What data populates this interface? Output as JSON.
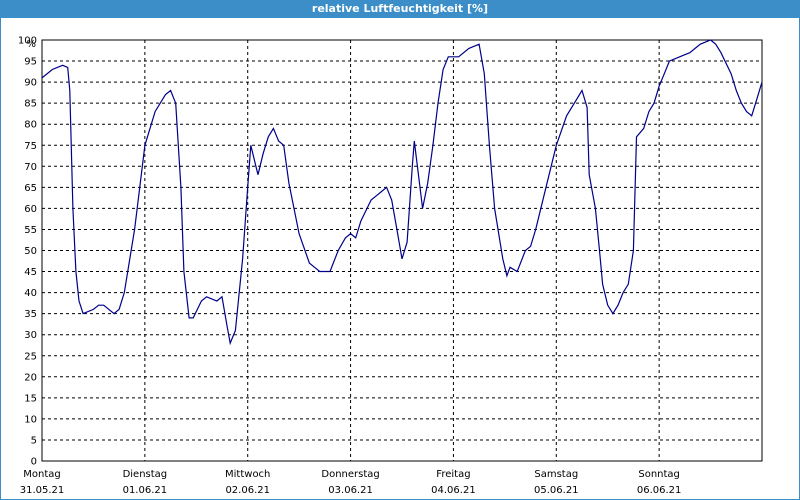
{
  "window": {
    "title": "relative Luftfeuchtigkeit [%]"
  },
  "colors": {
    "title_bg": "#3b8ec7",
    "series": "#00008b",
    "grid": "#000000"
  },
  "chart_data": {
    "type": "line",
    "title": "relative Luftfeuchtigkeit [%]",
    "ylabel": "%",
    "ylim": [
      0,
      100
    ],
    "ytick_step": 5,
    "yticks": [
      "0",
      "5",
      "10",
      "15",
      "20",
      "25",
      "30",
      "35",
      "40",
      "45",
      "50",
      "55",
      "60",
      "65",
      "70",
      "75",
      "80",
      "85",
      "90",
      "95",
      "100"
    ],
    "xlim_days": [
      0,
      7
    ],
    "day_labels": [
      {
        "day": "Montag",
        "date": "31.05.21"
      },
      {
        "day": "Dienstag",
        "date": "01.06.21"
      },
      {
        "day": "Mittwoch",
        "date": "02.06.21"
      },
      {
        "day": "Donnerstag",
        "date": "03.06.21"
      },
      {
        "day": "Freitag",
        "date": "04.06.21"
      },
      {
        "day": "Samstag",
        "date": "05.06.21"
      },
      {
        "day": "Sonntag",
        "date": "06.06.21"
      }
    ],
    "grid": true,
    "series": [
      {
        "name": "",
        "color": "#00008b",
        "points": [
          [
            0.0,
            91
          ],
          [
            0.1,
            93
          ],
          [
            0.2,
            94
          ],
          [
            0.25,
            93.5
          ],
          [
            0.27,
            88
          ],
          [
            0.3,
            60
          ],
          [
            0.33,
            45
          ],
          [
            0.36,
            38
          ],
          [
            0.4,
            35
          ],
          [
            0.5,
            36
          ],
          [
            0.55,
            37
          ],
          [
            0.6,
            37
          ],
          [
            0.7,
            35
          ],
          [
            0.75,
            36
          ],
          [
            0.8,
            40
          ],
          [
            0.9,
            55
          ],
          [
            1.0,
            75
          ],
          [
            1.1,
            83
          ],
          [
            1.2,
            87
          ],
          [
            1.25,
            88
          ],
          [
            1.3,
            85
          ],
          [
            1.35,
            65
          ],
          [
            1.38,
            45
          ],
          [
            1.43,
            34
          ],
          [
            1.47,
            34
          ],
          [
            1.55,
            38
          ],
          [
            1.6,
            39
          ],
          [
            1.7,
            38
          ],
          [
            1.75,
            39
          ],
          [
            1.8,
            32
          ],
          [
            1.83,
            28
          ],
          [
            1.88,
            31
          ],
          [
            1.95,
            48
          ],
          [
            2.0,
            65
          ],
          [
            2.03,
            75
          ],
          [
            2.08,
            70
          ],
          [
            2.1,
            68
          ],
          [
            2.15,
            73
          ],
          [
            2.2,
            77
          ],
          [
            2.25,
            79
          ],
          [
            2.3,
            76
          ],
          [
            2.35,
            75
          ],
          [
            2.4,
            66
          ],
          [
            2.5,
            54
          ],
          [
            2.6,
            47
          ],
          [
            2.65,
            46
          ],
          [
            2.7,
            45
          ],
          [
            2.8,
            45
          ],
          [
            2.88,
            50
          ],
          [
            2.95,
            53
          ],
          [
            3.0,
            54
          ],
          [
            3.05,
            53
          ],
          [
            3.1,
            57
          ],
          [
            3.2,
            62
          ],
          [
            3.25,
            63
          ],
          [
            3.3,
            64
          ],
          [
            3.35,
            65
          ],
          [
            3.4,
            62
          ],
          [
            3.45,
            55
          ],
          [
            3.5,
            48
          ],
          [
            3.55,
            52
          ],
          [
            3.6,
            70
          ],
          [
            3.62,
            76
          ],
          [
            3.65,
            70
          ],
          [
            3.7,
            60
          ],
          [
            3.75,
            66
          ],
          [
            3.8,
            75
          ],
          [
            3.85,
            85
          ],
          [
            3.9,
            93
          ],
          [
            3.95,
            96
          ],
          [
            4.05,
            96
          ],
          [
            4.15,
            98
          ],
          [
            4.25,
            99
          ],
          [
            4.3,
            92
          ],
          [
            4.35,
            75
          ],
          [
            4.4,
            60
          ],
          [
            4.48,
            48
          ],
          [
            4.52,
            44
          ],
          [
            4.55,
            46
          ],
          [
            4.62,
            45
          ],
          [
            4.7,
            50
          ],
          [
            4.75,
            51
          ],
          [
            4.8,
            55
          ],
          [
            4.9,
            65
          ],
          [
            5.0,
            75
          ],
          [
            5.1,
            82
          ],
          [
            5.2,
            86
          ],
          [
            5.25,
            88
          ],
          [
            5.3,
            84
          ],
          [
            5.32,
            68
          ],
          [
            5.38,
            60
          ],
          [
            5.42,
            50
          ],
          [
            5.45,
            42
          ],
          [
            5.5,
            37
          ],
          [
            5.55,
            35
          ],
          [
            5.6,
            37
          ],
          [
            5.65,
            40
          ],
          [
            5.7,
            42
          ],
          [
            5.75,
            50
          ],
          [
            5.78,
            77
          ],
          [
            5.85,
            79
          ],
          [
            5.9,
            83
          ],
          [
            5.95,
            85
          ],
          [
            6.0,
            89
          ],
          [
            6.05,
            92
          ],
          [
            6.1,
            95
          ],
          [
            6.2,
            96
          ],
          [
            6.3,
            97
          ],
          [
            6.35,
            98
          ],
          [
            6.4,
            99
          ],
          [
            6.5,
            100
          ],
          [
            6.55,
            99
          ],
          [
            6.6,
            97
          ],
          [
            6.7,
            92
          ],
          [
            6.75,
            88
          ],
          [
            6.8,
            85
          ],
          [
            6.85,
            83
          ],
          [
            6.9,
            82
          ],
          [
            6.95,
            86
          ],
          [
            7.0,
            90
          ]
        ]
      }
    ]
  }
}
